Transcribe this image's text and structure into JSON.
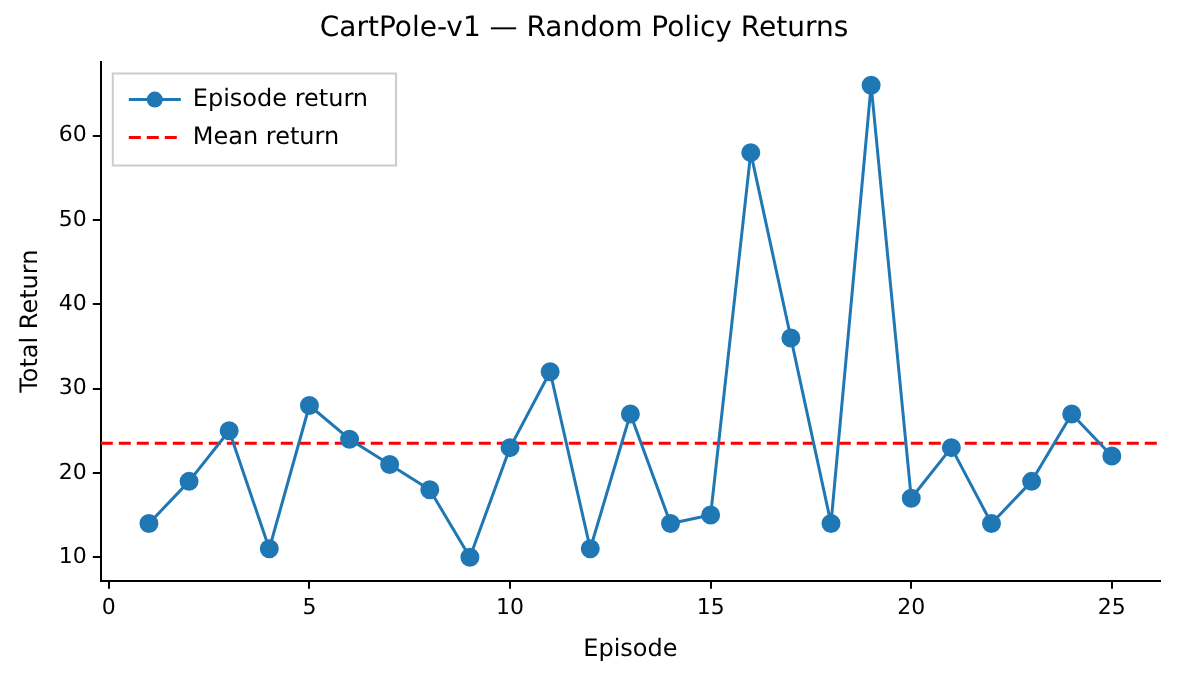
{
  "chart_data": {
    "type": "line",
    "title": "CartPole-v1 — Random Policy Returns",
    "xlabel": "Episode",
    "ylabel": "Total Return",
    "x": [
      1,
      2,
      3,
      4,
      5,
      6,
      7,
      8,
      9,
      10,
      11,
      12,
      13,
      14,
      15,
      16,
      17,
      18,
      19,
      20,
      21,
      22,
      23,
      24,
      25
    ],
    "series": [
      {
        "name": "Episode return",
        "color": "#1f77b4",
        "values": [
          14,
          19,
          25,
          11,
          28,
          24,
          21,
          18,
          10,
          23,
          32,
          11,
          27,
          14,
          15,
          58,
          36,
          14,
          66,
          17,
          23,
          14,
          19,
          27,
          22
        ]
      }
    ],
    "ref_lines": [
      {
        "axis": "y",
        "value": 23.52,
        "label": "Mean return",
        "color": "#ff0000",
        "line_style": "dashed"
      }
    ],
    "xlim": [
      -0.2,
      26.2
    ],
    "xticks": [
      0,
      5,
      10,
      15,
      20,
      25
    ],
    "ylim": [
      7.2,
      68.8
    ],
    "yticks": [
      10,
      20,
      30,
      40,
      50,
      60
    ],
    "marker": "circle",
    "line_style": "solid",
    "grid": false,
    "legend": "top left"
  }
}
